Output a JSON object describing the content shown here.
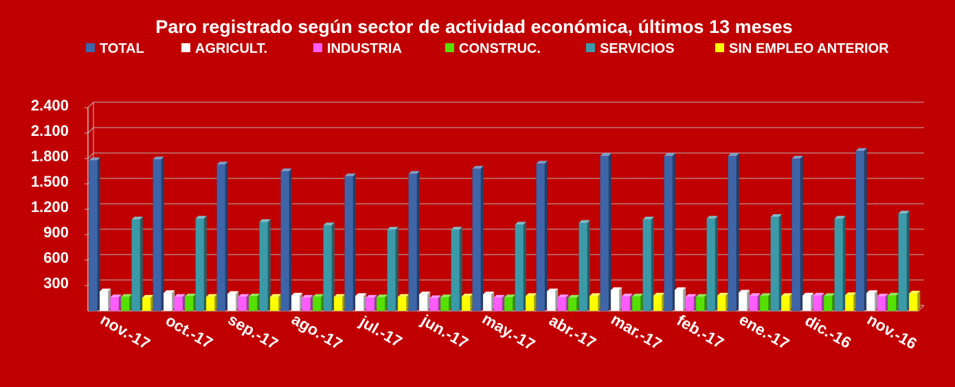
{
  "chart_data": {
    "type": "bar",
    "title": "Paro registrado según sector de actividad económica, últimos 13 meses",
    "categories": [
      "nov.-17",
      "oct.-17",
      "sep.-17",
      "ago.-17",
      "jul.-17",
      "jun.-17",
      "may.-17",
      "abr.-17",
      "mar.-17",
      "feb.-17",
      "ene.-17",
      "dic.-16",
      "nov.-16"
    ],
    "series": [
      {
        "name": "TOTAL",
        "color": "#3e65a8",
        "values": [
          1780,
          1790,
          1730,
          1650,
          1590,
          1620,
          1680,
          1740,
          1830,
          1830,
          1830,
          1800,
          1890
        ]
      },
      {
        "name": "AGRICULT.",
        "color": "#ffffff",
        "values": [
          230,
          210,
          200,
          180,
          175,
          195,
          195,
          230,
          245,
          245,
          215,
          180,
          210
        ]
      },
      {
        "name": "INDUSTRIA",
        "color": "#ff5cff",
        "values": [
          160,
          165,
          165,
          155,
          155,
          150,
          155,
          160,
          170,
          165,
          175,
          180,
          170
        ]
      },
      {
        "name": "CONSTRUC.",
        "color": "#55e000",
        "values": [
          165,
          170,
          170,
          165,
          160,
          160,
          160,
          155,
          170,
          165,
          175,
          175,
          180
        ]
      },
      {
        "name": "SERVICIOS",
        "color": "#3c9aa8",
        "values": [
          1080,
          1090,
          1050,
          1010,
          960,
          960,
          1020,
          1040,
          1080,
          1090,
          1110,
          1090,
          1150
        ]
      },
      {
        "name": "SIN EMPLEO ANTERIOR",
        "color": "#ffff00",
        "values": [
          155,
          165,
          165,
          165,
          165,
          170,
          175,
          175,
          180,
          180,
          175,
          185,
          205
        ]
      }
    ],
    "yticks": [
      "2.400",
      "2.100",
      "1.800",
      "1.500",
      "1.200",
      "900",
      "600",
      "300"
    ],
    "ylim": [
      0,
      2400
    ],
    "ytick_step": 300,
    "grid": true,
    "legend_position": "top"
  }
}
